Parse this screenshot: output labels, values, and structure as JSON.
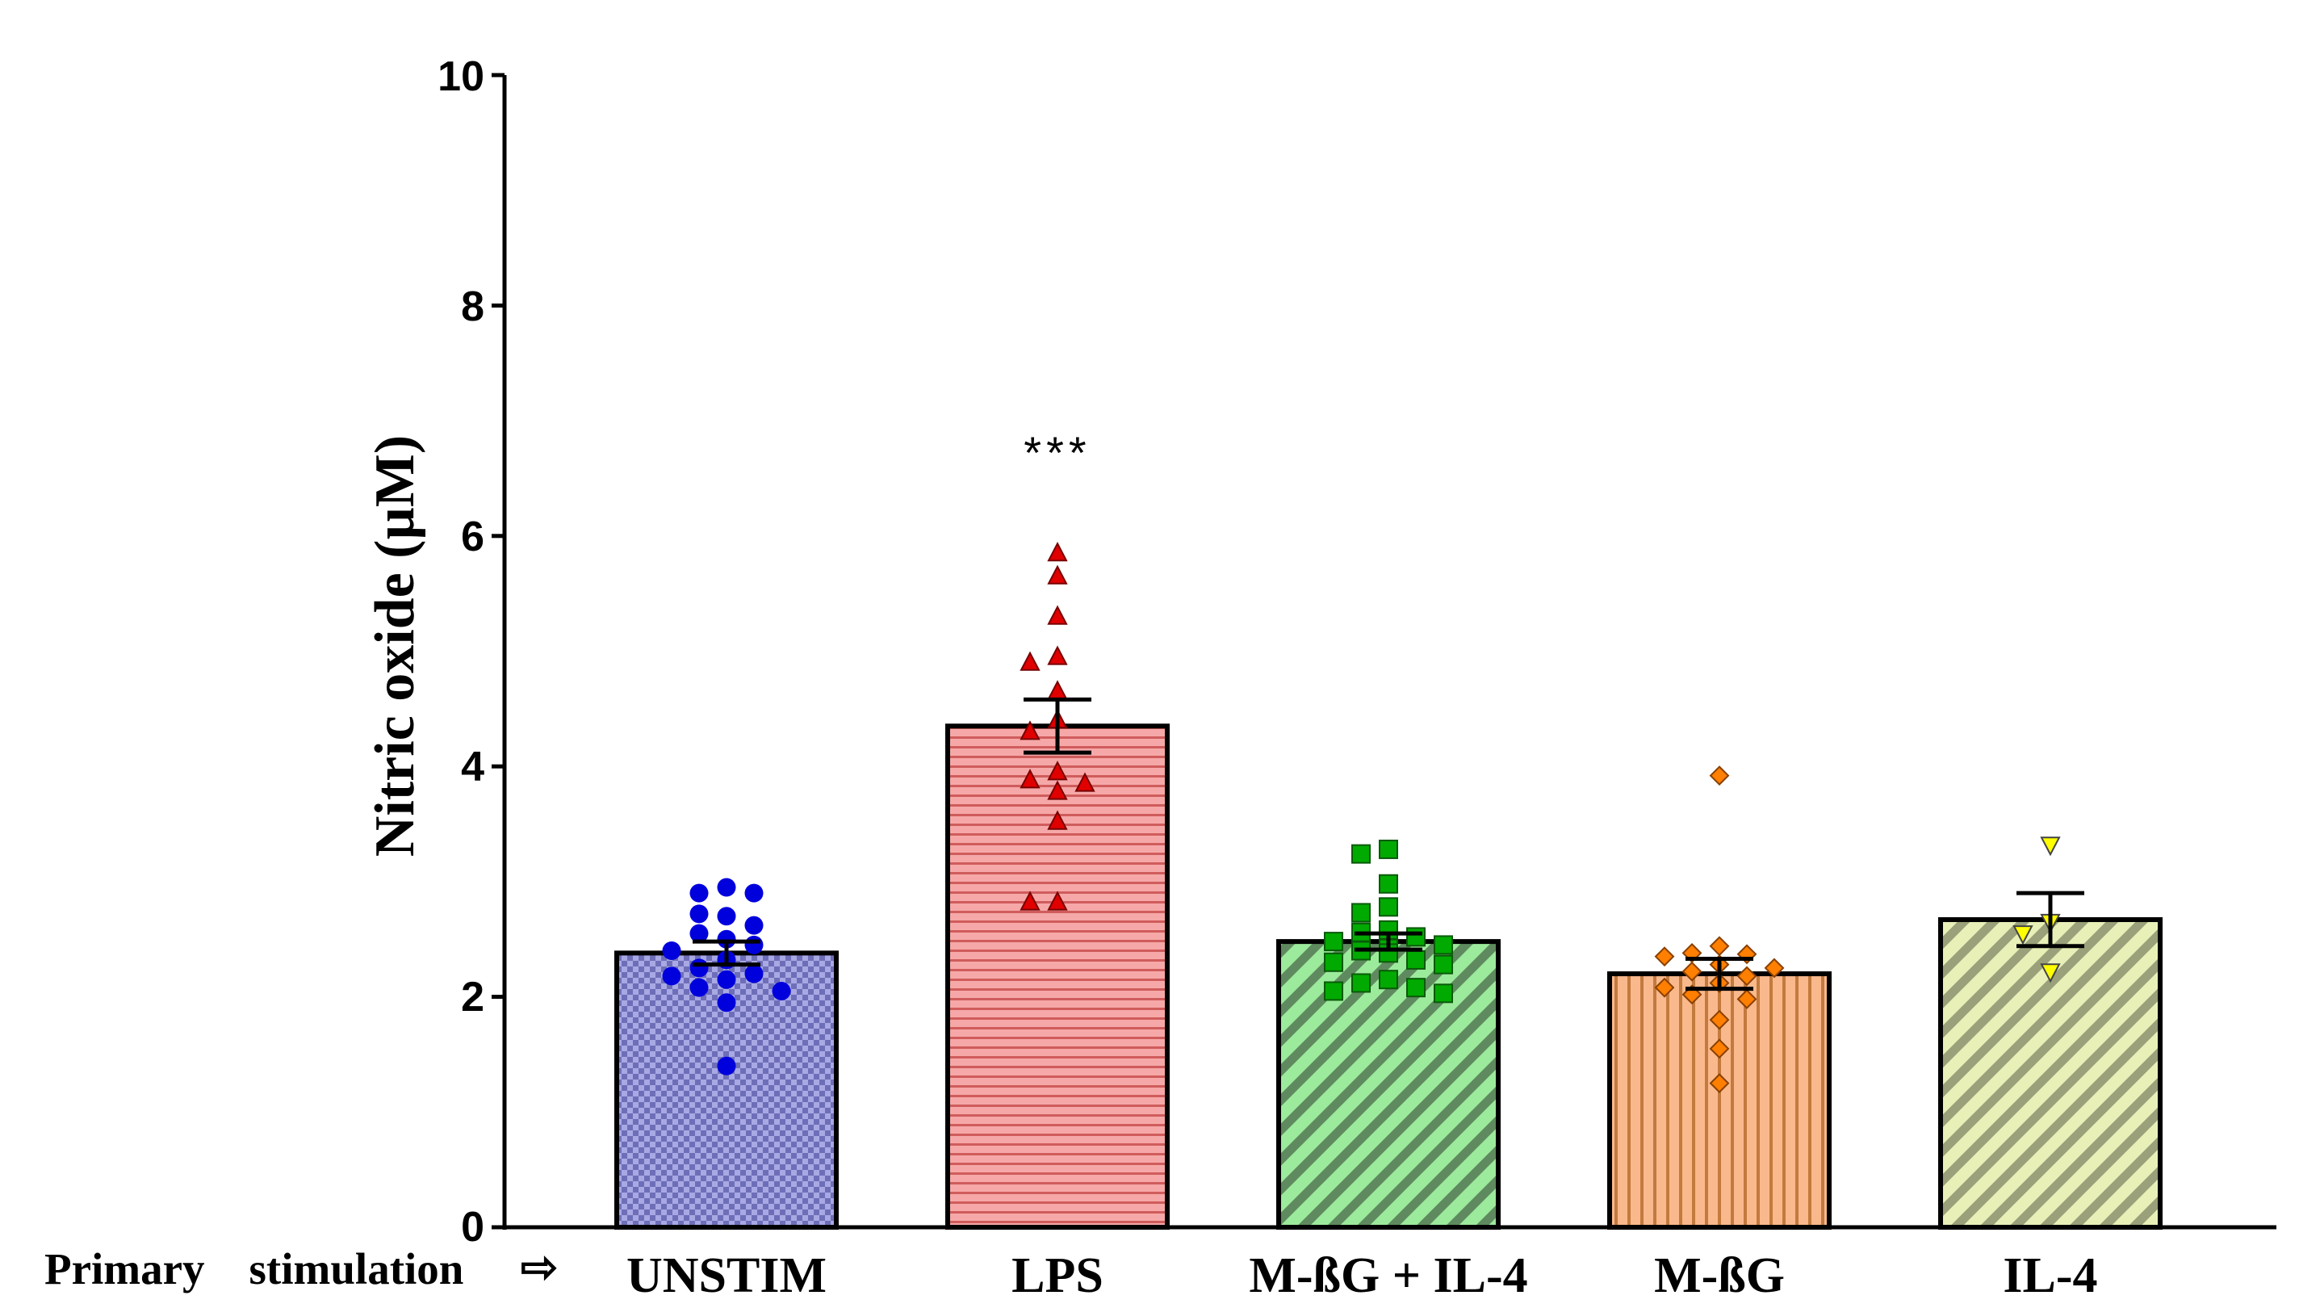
{
  "chart_data": {
    "type": "bar",
    "title": "",
    "xlabel": "",
    "ylabel": "Nitric oxide (µM)",
    "ylim": [
      0,
      10
    ],
    "yticks": [
      "0",
      "2",
      "4",
      "6",
      "8",
      "10"
    ],
    "x_prefix": "Primary    stimulation",
    "x_prefix_arrow": "⇨",
    "categories": [
      "UNSTIM",
      "LPS",
      "M-ßG + IL-4",
      "M-ßG",
      "IL-4"
    ],
    "values": [
      2.38,
      4.35,
      2.48,
      2.2,
      2.67
    ],
    "errors": [
      0.1,
      0.23,
      0.07,
      0.13,
      0.23
    ],
    "colors": [
      "#9b9bdc",
      "#f4a0a0",
      "#98e698",
      "#f9b888",
      "#e6eeb2"
    ],
    "patterns": [
      "checker",
      "horizontal",
      "diagonal",
      "vertical",
      "diagonal"
    ],
    "point_colors": [
      "#0000dd",
      "#e00000",
      "#00aa00",
      "#ff7f00",
      "#ffff00"
    ],
    "markers": [
      "circle",
      "triangle-up",
      "square",
      "diamond",
      "triangle-down"
    ],
    "points": [
      [
        2.95,
        2.9,
        2.9,
        2.7,
        2.72,
        2.62,
        2.55,
        2.5,
        2.45,
        2.4,
        2.32,
        2.25,
        2.2,
        2.18,
        2.15,
        2.08,
        2.05,
        1.95,
        1.4
      ],
      [
        5.85,
        5.65,
        5.3,
        4.95,
        4.9,
        4.65,
        4.4,
        4.3,
        3.95,
        3.88,
        3.85,
        3.78,
        3.52,
        2.82,
        2.82
      ],
      [
        3.28,
        3.24,
        2.98,
        2.78,
        2.73,
        2.58,
        2.56,
        2.52,
        2.48,
        2.45,
        2.42,
        2.4,
        2.38,
        2.32,
        2.3,
        2.28,
        2.15,
        2.12,
        2.08,
        2.05,
        2.03
      ],
      [
        3.92,
        2.44,
        2.38,
        2.37,
        2.35,
        2.28,
        2.25,
        2.22,
        2.18,
        2.12,
        2.08,
        2.02,
        1.98,
        1.8,
        1.55,
        1.25
      ],
      [
        3.32,
        2.65,
        2.55,
        2.22
      ]
    ],
    "annotations": [
      {
        "category": "LPS",
        "text": "***"
      }
    ]
  }
}
